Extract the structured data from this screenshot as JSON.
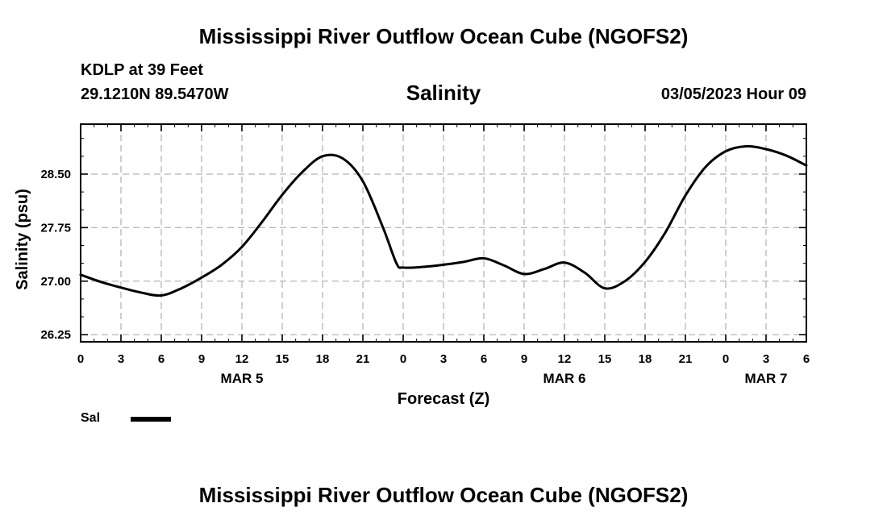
{
  "header": {
    "title": "Mississippi River Outflow Ocean Cube (NGOFS2)",
    "station": "KDLP at 39 Feet",
    "coords": "29.1210N  89.5470W",
    "variable": "Salinity",
    "datetime": "03/05/2023 Hour 09"
  },
  "footer": {
    "title": "Mississippi River Outflow Ocean Cube (NGOFS2)"
  },
  "legend": {
    "label": "Sal",
    "color": "#000000"
  },
  "chart_data": {
    "type": "line",
    "title": "Salinity",
    "xlabel": "Forecast (Z)",
    "ylabel": "Salinity (psu)",
    "xlim": [
      0,
      54
    ],
    "ylim": [
      26.15,
      29.2
    ],
    "grid": true,
    "legend_position": "bottom-left",
    "x_ticks": [
      0,
      3,
      6,
      9,
      12,
      15,
      18,
      21,
      24,
      27,
      30,
      33,
      36,
      39,
      42,
      45,
      48,
      51,
      54
    ],
    "x_tick_labels": [
      "0",
      "3",
      "6",
      "9",
      "12",
      "15",
      "18",
      "21",
      "0",
      "3",
      "6",
      "9",
      "12",
      "15",
      "18",
      "21",
      "0",
      "3",
      "6"
    ],
    "x_day_labels": [
      {
        "x": 12,
        "label": "MAR 5"
      },
      {
        "x": 36,
        "label": "MAR 6"
      },
      {
        "x": 51,
        "label": "MAR 7"
      }
    ],
    "y_ticks": [
      26.25,
      27.0,
      27.75,
      28.5
    ],
    "y_tick_labels": [
      "26.25",
      "27.00",
      "27.75",
      "28.50"
    ],
    "series": [
      {
        "name": "Sal",
        "color": "#000000",
        "x": [
          0,
          1.5,
          3,
          4.5,
          6,
          7.5,
          9,
          10.5,
          12,
          13.5,
          15,
          16.5,
          18,
          19.5,
          21,
          22.5,
          23.5,
          24,
          25.5,
          27,
          28.5,
          30,
          31.5,
          33,
          34.5,
          36,
          37.5,
          39,
          40.5,
          42,
          43.5,
          45,
          46.5,
          48,
          49.5,
          51,
          52.5,
          54
        ],
        "y": [
          27.09,
          26.99,
          26.91,
          26.84,
          26.8,
          26.9,
          27.05,
          27.23,
          27.48,
          27.83,
          28.21,
          28.53,
          28.75,
          28.72,
          28.4,
          27.75,
          27.25,
          27.19,
          27.2,
          27.23,
          27.27,
          27.32,
          27.22,
          27.1,
          27.17,
          27.26,
          27.12,
          26.9,
          27.0,
          27.27,
          27.68,
          28.2,
          28.6,
          28.82,
          28.89,
          28.85,
          28.76,
          28.62
        ]
      }
    ]
  }
}
